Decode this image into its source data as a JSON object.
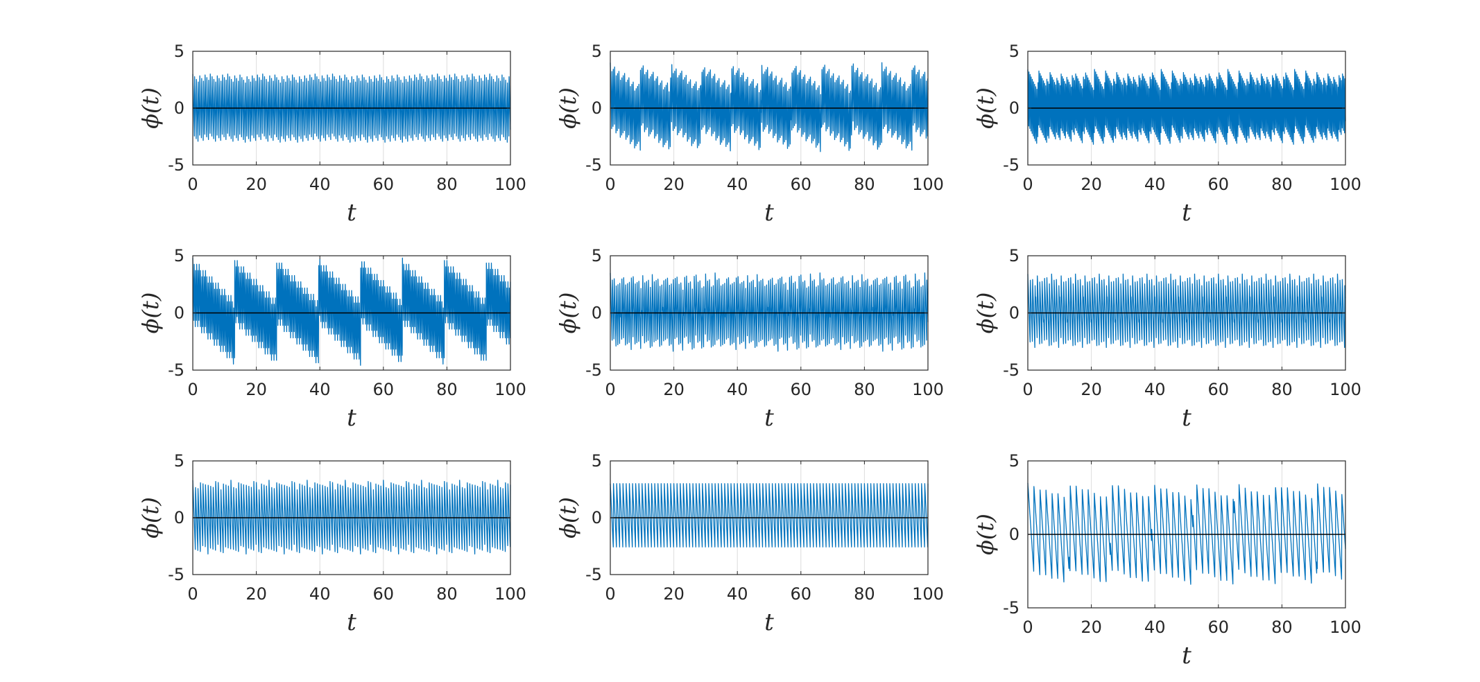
{
  "colors": {
    "series": "#0072BD",
    "zero_line": "#000000",
    "axis": "#262626",
    "grid": "#dcdcdc"
  },
  "chart_data": [
    {
      "type": "line",
      "panel": "r1c1",
      "xlabel": "t",
      "ylabel": "ϕ(t)",
      "xlim": [
        0,
        100
      ],
      "ylim": [
        -5,
        5
      ],
      "xticks": [
        "0",
        "20",
        "40",
        "60",
        "80",
        "100"
      ],
      "yticks": [
        "5",
        "0",
        "-5"
      ],
      "grid": "x",
      "series": [
        {
          "color": "#0072BD",
          "amplitude": 3,
          "oscillation_period": 0.55,
          "envelope_period": 0,
          "envelope_shift": 0
        },
        {
          "color": "#000000",
          "constant": 0
        }
      ]
    },
    {
      "type": "line",
      "panel": "r1c2",
      "xlabel": "t",
      "ylabel": "ϕ(t)",
      "xlim": [
        0,
        100
      ],
      "ylim": [
        -5,
        5
      ],
      "xticks": [
        "0",
        "20",
        "40",
        "60",
        "80",
        "100"
      ],
      "yticks": [
        "5",
        "0",
        "-5"
      ],
      "grid": "x",
      "series": [
        {
          "color": "#0072BD",
          "amplitude": 3,
          "oscillation_period": 0.45,
          "envelope_period": 9.5,
          "envelope_shift": 1
        },
        {
          "color": "#000000",
          "constant": 0
        }
      ]
    },
    {
      "type": "line",
      "panel": "r1c3",
      "xlabel": "t",
      "ylabel": "ϕ(t)",
      "xlim": [
        0,
        100
      ],
      "ylim": [
        -5,
        5
      ],
      "xticks": [
        "0",
        "20",
        "40",
        "60",
        "80",
        "100"
      ],
      "yticks": [
        "5",
        "0",
        "-5"
      ],
      "grid": "x",
      "series": [
        {
          "color": "#0072BD",
          "amplitude": 3,
          "oscillation_period": 0.35,
          "envelope_period": 3,
          "envelope_shift": 0.4
        },
        {
          "color": "#000000",
          "constant": 0
        }
      ]
    },
    {
      "type": "line",
      "panel": "r2c1",
      "xlabel": "t",
      "ylabel": "ϕ(t)",
      "xlim": [
        0,
        100
      ],
      "ylim": [
        -5,
        5
      ],
      "xticks": [
        "0",
        "20",
        "40",
        "60",
        "80",
        "100"
      ],
      "yticks": [
        "5",
        "0",
        "-5"
      ],
      "grid": "x",
      "series": [
        {
          "color": "#0072BD",
          "amplitude": 3,
          "oscillation_period": 0.4,
          "envelope_period": 13.2,
          "envelope_shift": 1.8
        },
        {
          "color": "#000000",
          "constant": 0
        }
      ]
    },
    {
      "type": "line",
      "panel": "r2c2",
      "xlabel": "t",
      "ylabel": "ϕ(t)",
      "xlim": [
        0,
        100
      ],
      "ylim": [
        -5,
        5
      ],
      "xticks": [
        "0",
        "20",
        "40",
        "60",
        "80",
        "100"
      ],
      "yticks": [
        "5",
        "0",
        "-5"
      ],
      "grid": "x",
      "series": [
        {
          "color": "#0072BD",
          "amplitude": 3,
          "oscillation_period": 0.6,
          "envelope_period": 3.3,
          "envelope_shift": 0.5
        },
        {
          "color": "#000000",
          "constant": 0
        }
      ]
    },
    {
      "type": "line",
      "panel": "r2c3",
      "xlabel": "t",
      "ylabel": "ϕ(t)",
      "xlim": [
        0,
        100
      ],
      "ylim": [
        -5,
        5
      ],
      "xticks": [
        "0",
        "20",
        "40",
        "60",
        "80",
        "100"
      ],
      "yticks": [
        "5",
        "0",
        "-5"
      ],
      "grid": "x",
      "series": [
        {
          "color": "#0072BD",
          "amplitude": 3,
          "oscillation_period": 0.75,
          "envelope_period": 2.5,
          "envelope_shift": 0.4
        },
        {
          "color": "#000000",
          "constant": 0
        }
      ]
    },
    {
      "type": "line",
      "panel": "r3c1",
      "xlabel": "t",
      "ylabel": "ϕ(t)",
      "xlim": [
        0,
        100
      ],
      "ylim": [
        -5,
        5
      ],
      "xticks": [
        "0",
        "20",
        "40",
        "60",
        "80",
        "100"
      ],
      "yticks": [
        "5",
        "0",
        "-5"
      ],
      "grid": "x",
      "series": [
        {
          "color": "#0072BD",
          "amplitude": 3,
          "oscillation_period": 0.8,
          "envelope_period": 2.4,
          "envelope_shift": 0.3
        },
        {
          "color": "#000000",
          "constant": 0
        }
      ]
    },
    {
      "type": "line",
      "panel": "r3c2",
      "xlabel": "t",
      "ylabel": "ϕ(t)",
      "xlim": [
        0,
        100
      ],
      "ylim": [
        -5,
        5
      ],
      "xticks": [
        "0",
        "20",
        "40",
        "60",
        "80",
        "100"
      ],
      "yticks": [
        "5",
        "0",
        "-5"
      ],
      "grid": "x",
      "series": [
        {
          "color": "#0072BD",
          "amplitude": 3,
          "oscillation_period": 1.0,
          "envelope_period": 0,
          "envelope_shift": 0
        },
        {
          "color": "#000000",
          "constant": 0
        }
      ]
    },
    {
      "type": "line",
      "panel": "r3c3",
      "xlabel": "t",
      "ylabel": "ϕ(t)",
      "xlim": [
        0,
        100
      ],
      "ylim": [
        -5,
        5
      ],
      "xticks": [
        "0",
        "20",
        "40",
        "60",
        "80",
        "100"
      ],
      "yticks": [
        "5",
        "0",
        "-5"
      ],
      "grid": "x",
      "series": [
        {
          "color": "#0072BD",
          "amplitude": 3,
          "oscillation_period": 1.9,
          "envelope_period": 13,
          "envelope_shift": 0.5
        },
        {
          "color": "#000000",
          "constant": 0
        }
      ]
    }
  ]
}
